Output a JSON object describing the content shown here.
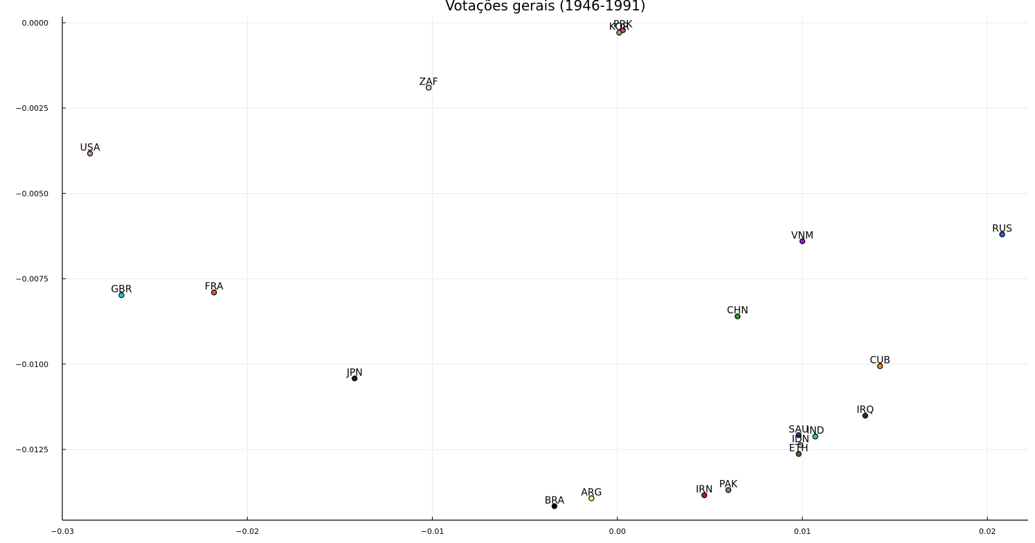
{
  "chart_data": {
    "type": "scatter",
    "title": "Votações gerais (1946-1991)",
    "xlabel": "",
    "ylabel": "",
    "xlim": [
      -0.03,
      0.0222
    ],
    "ylim": [
      -0.01457,
      0.00018
    ],
    "grid": true,
    "legend": "none",
    "x_ticks": [
      -0.03,
      -0.02,
      -0.01,
      0.0,
      0.01,
      0.02
    ],
    "x_tick_labels": [
      "−0.03",
      "−0.02",
      "−0.01",
      "0.00",
      "0.01",
      "0.02"
    ],
    "y_ticks": [
      0.0,
      -0.0025,
      -0.005,
      -0.0075,
      -0.01,
      -0.0125
    ],
    "y_tick_labels": [
      "0.0000",
      "−0.0025",
      "−0.0050",
      "−0.0075",
      "−0.0100",
      "−0.0125"
    ],
    "points": [
      {
        "label": "PRK",
        "x": 0.0003,
        "y": -0.00022,
        "color": "#e0485a"
      },
      {
        "label": "KOR",
        "x": 0.0001,
        "y": -0.00029,
        "color": "#a89e6c"
      },
      {
        "label": "ZAF",
        "x": -0.0102,
        "y": -0.0019,
        "color": "#f2d9c8"
      },
      {
        "label": "USA",
        "x": -0.0285,
        "y": -0.00383,
        "color": "#cf7fc7"
      },
      {
        "label": "RUS",
        "x": 0.0208,
        "y": -0.0062,
        "color": "#2a66d8"
      },
      {
        "label": "VNM",
        "x": 0.01,
        "y": -0.0064,
        "color": "#9a1ec9"
      },
      {
        "label": "GBR",
        "x": -0.0268,
        "y": -0.00798,
        "color": "#27c3e8"
      },
      {
        "label": "FRA",
        "x": -0.0218,
        "y": -0.0079,
        "color": "#e8582a"
      },
      {
        "label": "CHN",
        "x": 0.0065,
        "y": -0.0086,
        "color": "#2ca02c"
      },
      {
        "label": "CUB",
        "x": 0.0142,
        "y": -0.01006,
        "color": "#f28e2b"
      },
      {
        "label": "JPN",
        "x": -0.0142,
        "y": -0.01042,
        "color": "#3d0a3a"
      },
      {
        "label": "IRQ",
        "x": 0.0134,
        "y": -0.01151,
        "color": "#1f3a1f"
      },
      {
        "label": "SAU",
        "x": 0.0098,
        "y": -0.01208,
        "color": "#2e3f86"
      },
      {
        "label": "IND",
        "x": 0.0107,
        "y": -0.01212,
        "color": "#24d1a4"
      },
      {
        "label": "IDN",
        "x": 0.0099,
        "y": -0.01237,
        "color": "#c7c0f0"
      },
      {
        "label": "ETH",
        "x": 0.0098,
        "y": -0.01263,
        "color": "#6b5a1e"
      },
      {
        "label": "PAK",
        "x": 0.006,
        "y": -0.01369,
        "color": "#7a8a8a"
      },
      {
        "label": "IRN",
        "x": 0.0047,
        "y": -0.01384,
        "color": "#c0103c"
      },
      {
        "label": "ARG",
        "x": -0.0014,
        "y": -0.01393,
        "color": "#f4f48a"
      },
      {
        "label": "BRA",
        "x": -0.0034,
        "y": -0.01416,
        "color": "#000000"
      }
    ]
  }
}
